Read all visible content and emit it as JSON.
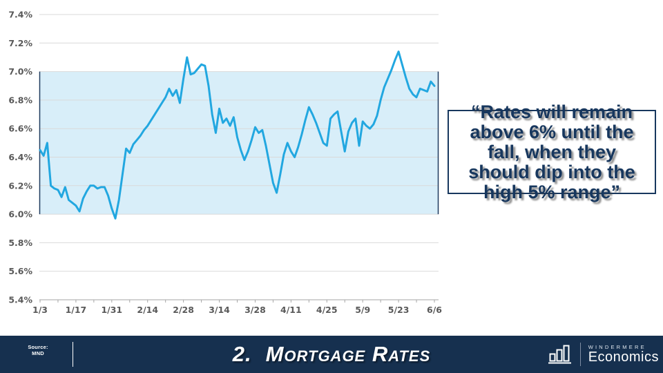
{
  "colors": {
    "line": "#22A7E0",
    "band": "#D8EEF9",
    "band_border": "#1F3A5F",
    "grid": "#D9D9D9",
    "axis_line": "#A6A6A6",
    "axis_text": "#595959",
    "navy": "#17375E",
    "footer_bg": "#16304F"
  },
  "chart_data": {
    "type": "line",
    "title": "2. Mortgage Rates",
    "xlabel": "",
    "ylabel": "",
    "grid": true,
    "legend": "none",
    "ylim": [
      5.4,
      7.4
    ],
    "y_ticks": [
      7.4,
      7.2,
      7.0,
      6.8,
      6.6,
      6.4,
      6.2,
      6.0,
      5.8,
      5.6,
      5.4
    ],
    "y_tick_suffix": "%",
    "band": {
      "from": 6.0,
      "to": 7.0
    },
    "label_every": 10,
    "minor_tick_every": 5,
    "x_tick_labels": [
      "1/3",
      "1/17",
      "1/31",
      "2/14",
      "2/28",
      "3/14",
      "3/28",
      "4/11",
      "4/25",
      "5/9",
      "5/23",
      "6/6"
    ],
    "x": [
      "1/3",
      "1/4",
      "1/5",
      "1/6",
      "1/9",
      "1/10",
      "1/11",
      "1/12",
      "1/13",
      "1/16",
      "1/17",
      "1/18",
      "1/19",
      "1/20",
      "1/23",
      "1/24",
      "1/25",
      "1/26",
      "1/27",
      "1/30",
      "1/31",
      "2/1",
      "2/2",
      "2/3",
      "2/6",
      "2/7",
      "2/8",
      "2/9",
      "2/10",
      "2/13",
      "2/14",
      "2/15",
      "2/16",
      "2/17",
      "2/20",
      "2/21",
      "2/22",
      "2/23",
      "2/24",
      "2/27",
      "2/28",
      "3/1",
      "3/2",
      "3/3",
      "3/6",
      "3/7",
      "3/8",
      "3/9",
      "3/10",
      "3/13",
      "3/14",
      "3/15",
      "3/16",
      "3/17",
      "3/20",
      "3/21",
      "3/22",
      "3/23",
      "3/24",
      "3/27",
      "3/28",
      "3/29",
      "3/30",
      "3/31",
      "4/3",
      "4/4",
      "4/5",
      "4/6",
      "4/7",
      "4/10",
      "4/11",
      "4/12",
      "4/13",
      "4/14",
      "4/17",
      "4/18",
      "4/19",
      "4/20",
      "4/21",
      "4/24",
      "4/25",
      "4/26",
      "4/27",
      "4/28",
      "5/1",
      "5/2",
      "5/3",
      "5/4",
      "5/5",
      "5/8",
      "5/9",
      "5/10",
      "5/11",
      "5/12",
      "5/15",
      "5/16",
      "5/17",
      "5/18",
      "5/19",
      "5/22",
      "5/23",
      "5/24",
      "5/25",
      "5/26",
      "5/29",
      "5/30",
      "5/31",
      "6/1",
      "6/2",
      "6/5",
      "6/6"
    ],
    "values": [
      6.45,
      6.41,
      6.5,
      6.2,
      6.18,
      6.17,
      6.12,
      6.19,
      6.1,
      6.08,
      6.06,
      6.02,
      6.11,
      6.16,
      6.2,
      6.2,
      6.18,
      6.19,
      6.19,
      6.13,
      6.04,
      5.97,
      6.1,
      6.28,
      6.46,
      6.43,
      6.49,
      6.52,
      6.55,
      6.59,
      6.62,
      6.66,
      6.7,
      6.74,
      6.78,
      6.82,
      6.88,
      6.83,
      6.87,
      6.78,
      6.95,
      7.1,
      6.98,
      6.99,
      7.02,
      7.05,
      7.04,
      6.9,
      6.7,
      6.57,
      6.74,
      6.64,
      6.67,
      6.62,
      6.68,
      6.54,
      6.45,
      6.38,
      6.44,
      6.52,
      6.61,
      6.57,
      6.59,
      6.48,
      6.35,
      6.22,
      6.15,
      6.28,
      6.42,
      6.5,
      6.44,
      6.4,
      6.47,
      6.56,
      6.66,
      6.75,
      6.7,
      6.64,
      6.57,
      6.5,
      6.48,
      6.67,
      6.7,
      6.72,
      6.58,
      6.44,
      6.58,
      6.64,
      6.67,
      6.48,
      6.65,
      6.62,
      6.6,
      6.63,
      6.69,
      6.8,
      6.89,
      6.95,
      7.01,
      7.08,
      7.14,
      7.05,
      6.96,
      6.88,
      6.84,
      6.82,
      6.88,
      6.87,
      6.86,
      6.93,
      6.9
    ]
  },
  "quote": {
    "text": "“Rates will remain\nabove 6% until the\nfall, when they\nshould dip into the\nhigh 5% range”"
  },
  "footer": {
    "source_label": "Source:",
    "source_value": "MND",
    "number": "2.",
    "title": "Mortgage Rates",
    "brand_name": "WINDERMERE",
    "brand_division": "Economics"
  }
}
